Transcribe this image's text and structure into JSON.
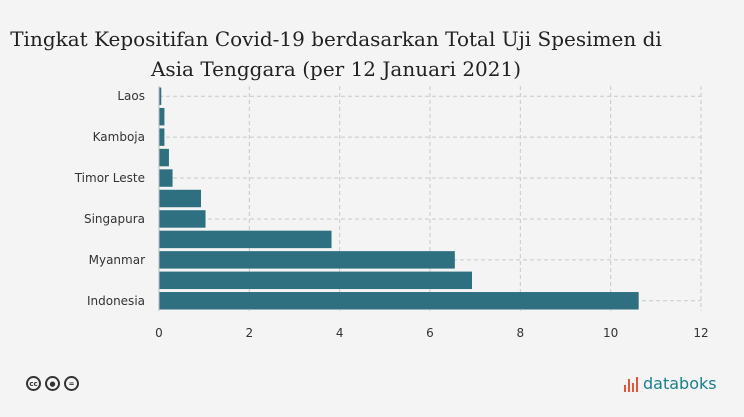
{
  "chart_data": {
    "type": "bar",
    "orientation": "horizontal",
    "title": "Tingkat Kepositifan Covid-19 berdasarkan Total Uji Spesimen di Asia Tenggara (per 12 Januari 2021)",
    "title_lines": [
      "Tingkat Kepositifan Covid-19 berdasarkan Total Uji Spesimen di",
      "Asia Tenggara (per 12 Januari 2021)"
    ],
    "categories": [
      "Laos",
      "",
      "Kamboja",
      "",
      "Timor Leste",
      "",
      "Singapura",
      "",
      "Myanmar",
      "",
      "Indonesia"
    ],
    "values": [
      0.05,
      0.12,
      0.12,
      0.22,
      0.3,
      0.93,
      1.03,
      3.82,
      6.55,
      6.93,
      10.62
    ],
    "xlim": [
      0,
      12
    ],
    "xticks": [
      0,
      2,
      4,
      6,
      8,
      10,
      12
    ],
    "xlabel": "",
    "ylabel": "",
    "grid": true,
    "bar_color": "#2e6f80"
  },
  "footer": {
    "license_icons": [
      "cc-icon",
      "by-icon",
      "nd-icon"
    ],
    "brand": "databoks",
    "brand_color": "#1a7f8c",
    "brand_mark_color": "#e4543b"
  }
}
